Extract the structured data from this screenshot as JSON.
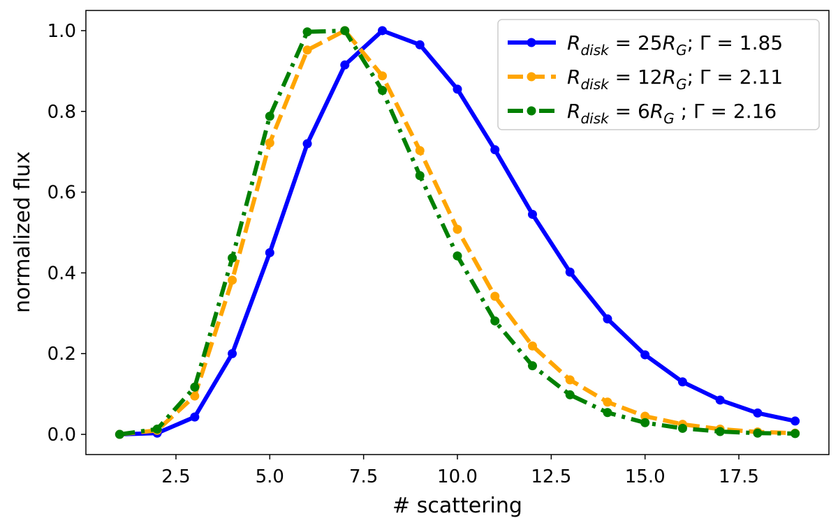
{
  "chart_data": {
    "type": "line",
    "title": "",
    "xlabel": "# scattering",
    "ylabel": "normalized flux",
    "xlim": [
      0.1,
      19.9
    ],
    "ylim": [
      -0.05,
      1.05
    ],
    "xticks": [
      2.5,
      5.0,
      7.5,
      10.0,
      12.5,
      15.0,
      17.5
    ],
    "xtick_labels": [
      "2.5",
      "5.0",
      "7.5",
      "10.0",
      "12.5",
      "15.0",
      "17.5"
    ],
    "yticks": [
      0.0,
      0.2,
      0.4,
      0.6,
      0.8,
      1.0
    ],
    "ytick_labels": [
      "0.0",
      "0.2",
      "0.4",
      "0.6",
      "0.8",
      "1.0"
    ],
    "grid": false,
    "legend_position": "top-right",
    "x": [
      1,
      2,
      3,
      4,
      5,
      6,
      7,
      8,
      9,
      10,
      11,
      12,
      13,
      14,
      15,
      16,
      17,
      18,
      19
    ],
    "series": [
      {
        "name": "R_disk = 25R_G; Γ = 1.85",
        "legend_prefix": "R",
        "legend_sub1": "disk",
        "legend_mid": " = 25",
        "legend_sub2": "G",
        "legend_suffix": "; Γ = 1.85",
        "color": "#0000ff",
        "linestyle": "solid",
        "values": [
          0.0,
          0.003,
          0.043,
          0.2,
          0.45,
          0.72,
          0.915,
          1.0,
          0.965,
          0.855,
          0.705,
          0.545,
          0.402,
          0.286,
          0.197,
          0.13,
          0.085,
          0.053,
          0.033
        ]
      },
      {
        "name": "R_disk = 12R_G; Γ = 2.11",
        "legend_prefix": "R",
        "legend_sub1": "disk",
        "legend_mid": " = 12",
        "legend_sub2": "G",
        "legend_suffix": "; Γ = 2.11",
        "color": "#ffa500",
        "linestyle": "dashed",
        "values": [
          0.0,
          0.01,
          0.095,
          0.382,
          0.722,
          0.952,
          1.0,
          0.888,
          0.703,
          0.508,
          0.342,
          0.219,
          0.135,
          0.08,
          0.045,
          0.025,
          0.013,
          0.006,
          0.003
        ]
      },
      {
        "name": "R_disk = 6R_G ; Γ = 2.16",
        "legend_prefix": "R",
        "legend_sub1": "disk",
        "legend_mid": " = 6",
        "legend_sub2": "G",
        "legend_suffix": "  ; Γ = 2.16",
        "color": "#008000",
        "linestyle": "dashdot",
        "values": [
          0.0,
          0.013,
          0.117,
          0.437,
          0.788,
          0.997,
          1.0,
          0.852,
          0.641,
          0.442,
          0.281,
          0.17,
          0.098,
          0.054,
          0.029,
          0.015,
          0.007,
          0.003,
          0.002
        ]
      }
    ]
  }
}
